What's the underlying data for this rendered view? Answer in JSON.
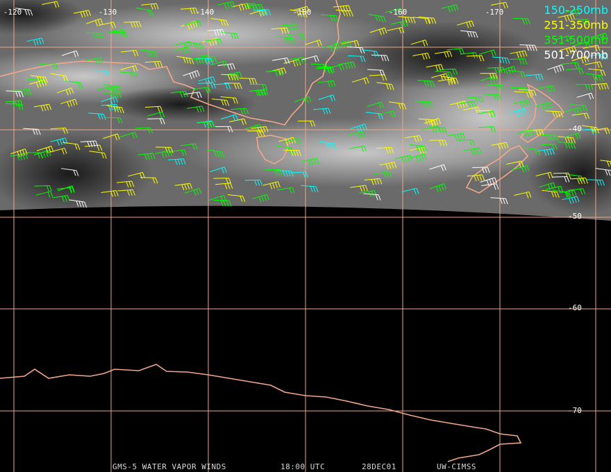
{
  "longitude_labels": [
    "-120",
    "-130",
    "-140",
    "-150",
    "-160",
    "-170"
  ],
  "latitude_labels": [
    "-40",
    "-50",
    "-60",
    "-70"
  ],
  "legend": [
    "150-250mb",
    "251-350mb",
    "351-500mb",
    "501-700mb"
  ],
  "footer": {
    "product": "GMS-5 WATER VAPOR WINDS",
    "time": "18:00 UTC",
    "date": "28DEC01",
    "source": "UW-CIMSS"
  }
}
